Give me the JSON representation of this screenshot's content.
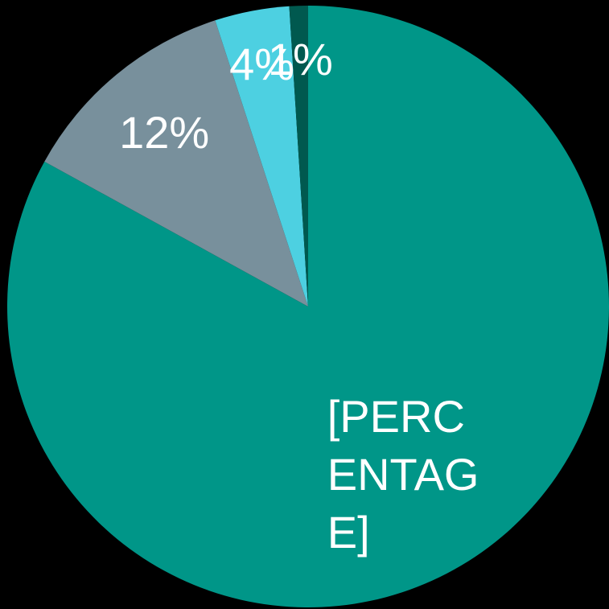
{
  "chart_data": {
    "type": "pie",
    "categories": [
      null,
      null,
      null,
      null
    ],
    "values": [
      83,
      12,
      4,
      1
    ],
    "value_labels": [
      "[PERCENTAGE]",
      "12%",
      "4%",
      "1%"
    ],
    "colors": [
      "#009688",
      "#78909c",
      "#4dd0e1",
      "#00594f"
    ]
  }
}
